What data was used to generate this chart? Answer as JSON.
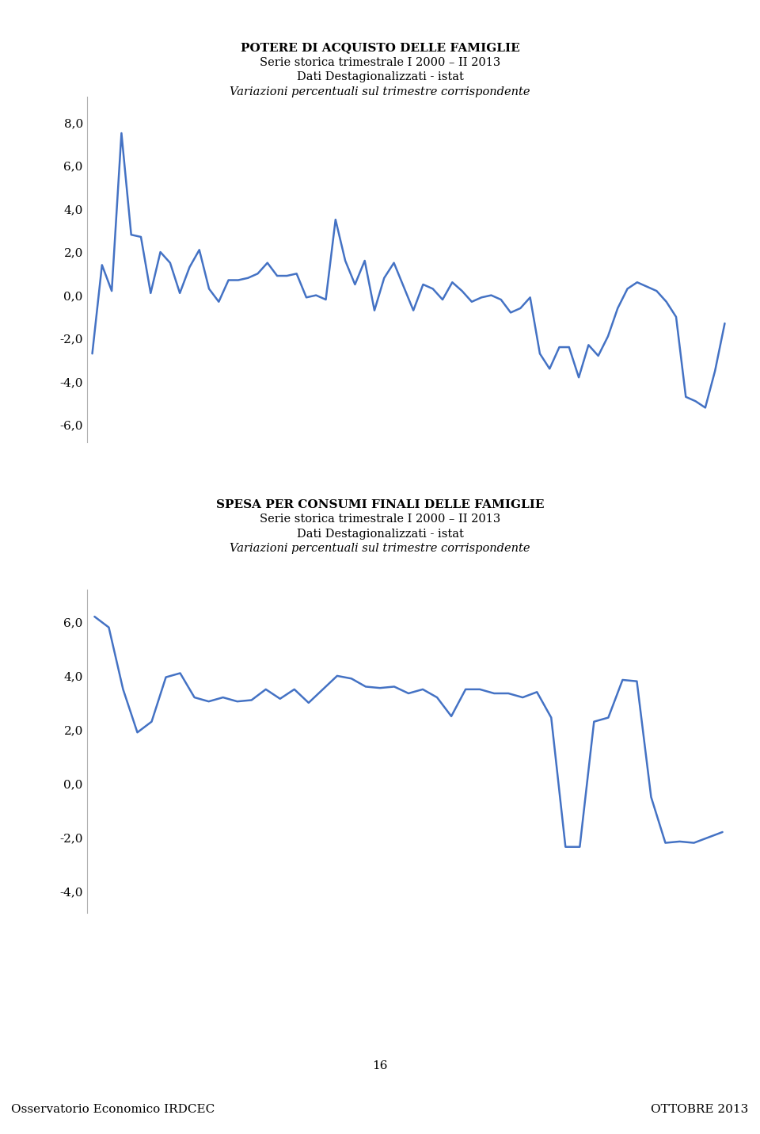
{
  "chart1_title": "POTERE DI ACQUISTO DELLE FAMIGLIE",
  "chart1_subtitle1": "Serie storica trimestrale I 2000 – II 2013",
  "chart1_subtitle2": "Dati Destagionalizzati - istat",
  "chart1_subtitle3": "Variazioni percentuali sul trimestre corrispondente",
  "chart2_title": "SPESA PER CONSUMI FINALI DELLE FAMIGLIE",
  "chart2_subtitle1": "Serie storica trimestrale I 2000 – II 2013",
  "chart2_subtitle2": "Dati Destagionalizzati - istat",
  "chart2_subtitle3": "Variazioni percentuali sul trimestre corrispondente",
  "footer_left": "Osservatorio Economico IRDCEC",
  "footer_right": "OTTOBRE 2013",
  "footer_bg": "#f5d800",
  "page_number": "16",
  "line_color": "#4472C4",
  "line_width": 1.8,
  "chart1_ylim": [
    -6.8,
    9.2
  ],
  "chart1_yticks": [
    -6.0,
    -4.0,
    -2.0,
    0.0,
    2.0,
    4.0,
    6.0,
    8.0
  ],
  "chart2_ylim": [
    -4.8,
    7.2
  ],
  "chart2_yticks": [
    -4.0,
    -2.0,
    0.0,
    2.0,
    4.0,
    6.0
  ],
  "chart1_data": [
    -2.7,
    1.4,
    0.2,
    7.5,
    2.8,
    2.7,
    0.1,
    2.0,
    1.5,
    0.1,
    1.3,
    2.1,
    0.3,
    -0.3,
    0.7,
    0.7,
    0.8,
    1.0,
    1.5,
    0.9,
    0.9,
    1.0,
    -0.1,
    0.0,
    -0.2,
    3.5,
    1.6,
    0.5,
    1.6,
    -0.7,
    0.8,
    1.5,
    0.4,
    -0.7,
    0.5,
    0.3,
    -0.2,
    0.6,
    0.2,
    -0.3,
    -0.1,
    0.0,
    -0.2,
    -0.8,
    -0.6,
    -0.1,
    -2.7,
    -3.4,
    -2.4,
    -2.4,
    -3.8,
    -2.3,
    -2.8,
    -1.9,
    -0.6,
    0.3,
    0.6,
    0.4,
    0.2,
    -0.3,
    -1.0,
    -4.7,
    -4.9,
    -5.2,
    -3.5,
    -1.3
  ],
  "chart2_data": [
    6.2,
    5.8,
    3.5,
    1.9,
    2.3,
    3.95,
    4.1,
    3.2,
    3.05,
    3.2,
    3.05,
    3.1,
    3.5,
    3.15,
    3.5,
    3.0,
    3.5,
    4.0,
    3.9,
    3.6,
    3.55,
    3.6,
    3.35,
    3.5,
    3.2,
    2.5,
    3.5,
    3.5,
    3.35,
    3.35,
    3.2,
    3.4,
    2.45,
    -2.35,
    -2.35,
    2.3,
    2.45,
    3.85,
    3.8,
    -0.5,
    -2.2,
    -2.15,
    -2.2,
    -2.0,
    -1.8
  ],
  "bg_color": "#ffffff",
  "text_color": "#000000"
}
